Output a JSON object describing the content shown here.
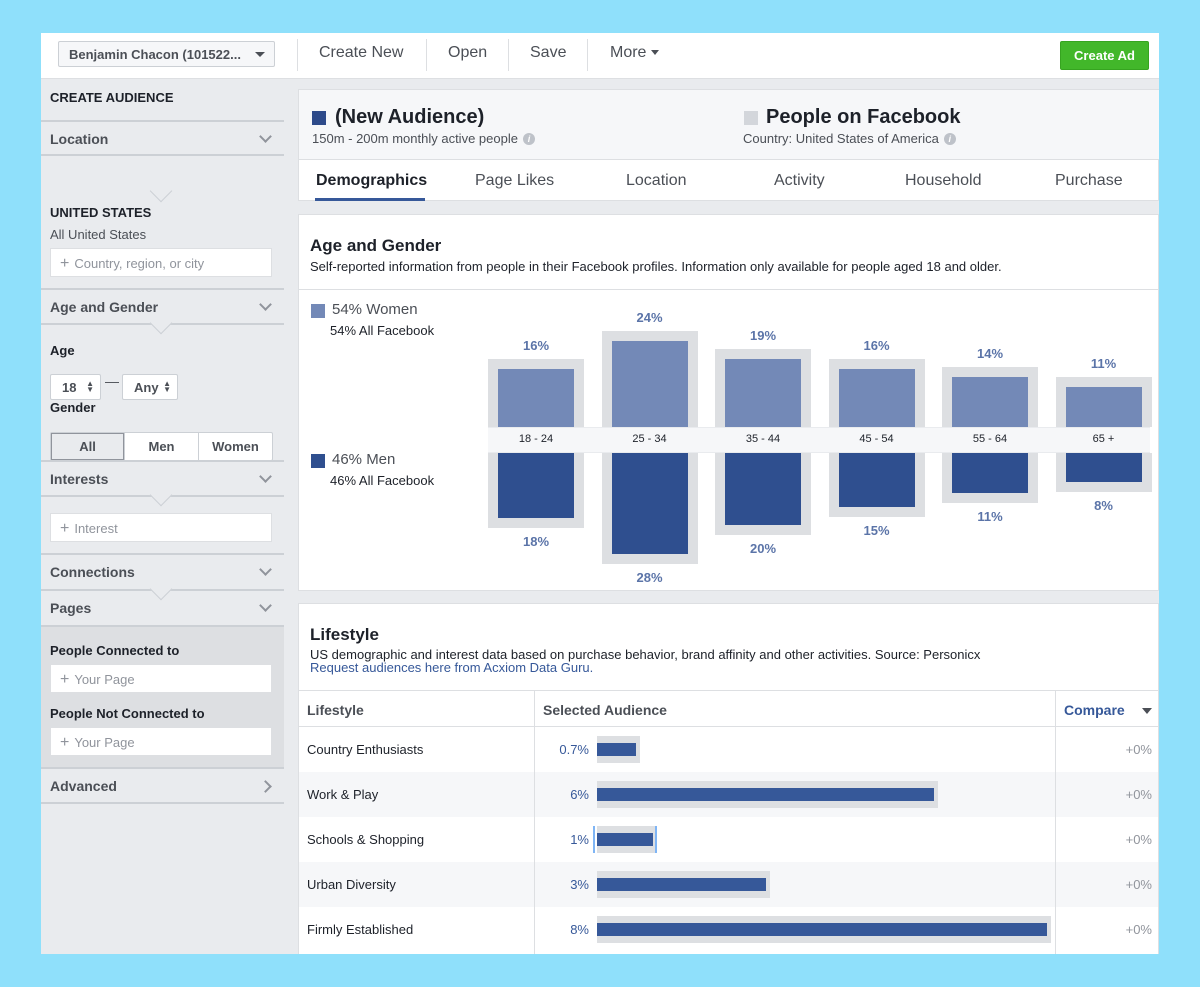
{
  "topbar": {
    "account": "Benjamin Chacon (101522...",
    "menu": [
      "Create New",
      "Open",
      "Save",
      "More"
    ],
    "create_ad": "Create Ad"
  },
  "sidebar": {
    "title": "CREATE AUDIENCE",
    "location": {
      "header": "Location",
      "country": "UNITED STATES",
      "country_sub": "All United States",
      "placeholder": "Country, region, or city"
    },
    "age_gender": {
      "header": "Age and Gender",
      "age_label": "Age",
      "age_min": "18",
      "age_max": "Any",
      "gender_label": "Gender",
      "gender_options": [
        "All",
        "Men",
        "Women"
      ]
    },
    "interests": {
      "header": "Interests",
      "placeholder": "Interest"
    },
    "connections": {
      "header": "Connections"
    },
    "pages": {
      "header": "Pages",
      "connected_label": "People Connected to",
      "connected_placeholder": "Your Page",
      "not_connected_label": "People Not Connected to",
      "not_connected_placeholder": "Your Page"
    },
    "advanced": {
      "header": "Advanced"
    }
  },
  "audience": {
    "title": "(New Audience)",
    "subtitle": "150m - 200m monthly active people",
    "compare_title": "People on Facebook",
    "compare_subtitle": "Country: United States of America",
    "color_main": "#2d4a8a",
    "color_compare": "#d3d6db"
  },
  "tabs": [
    "Demographics",
    "Page Likes",
    "Location",
    "Activity",
    "Household",
    "Purchase"
  ],
  "age_gender": {
    "title": "Age and Gender",
    "description": "Self-reported information from people in their Facebook profiles. Information only available for people aged 18 and older.",
    "women_label": "54% Women",
    "women_sub": "54% All Facebook",
    "men_label": "46% Men",
    "men_sub": "46% All Facebook",
    "color_women": "#7389b7",
    "color_men": "#2f4f8f"
  },
  "chart_data": {
    "type": "bar",
    "categories": [
      "18 - 24",
      "25 - 34",
      "35 - 44",
      "45 - 54",
      "55 - 64",
      "65 +"
    ],
    "series": [
      {
        "name": "Women",
        "values": [
          16,
          24,
          19,
          16,
          14,
          11
        ],
        "labels": [
          "16%",
          "24%",
          "19%",
          "16%",
          "14%",
          "11%"
        ]
      },
      {
        "name": "Men",
        "values": [
          18,
          28,
          20,
          15,
          11,
          8
        ],
        "labels": [
          "18%",
          "28%",
          "20%",
          "15%",
          "11%",
          "8%"
        ]
      }
    ],
    "comparison": {
      "women": [
        16,
        24,
        19,
        16,
        14,
        11
      ],
      "men": [
        18,
        28,
        20,
        15,
        11,
        8
      ]
    }
  },
  "lifestyle": {
    "title": "Lifestyle",
    "description": "US demographic and interest data based on purchase behavior, brand affinity and other activities. Source: Personicx",
    "link": "Request audiences here from Acxiom Data Guru.",
    "col_lifestyle": "Lifestyle",
    "col_selected": "Selected Audience",
    "col_compare": "Compare",
    "rows": [
      {
        "name": "Country Enthusiasts",
        "pct": "0.7%",
        "value": 0.7,
        "compare": "+0%"
      },
      {
        "name": "Work & Play",
        "pct": "6%",
        "value": 6,
        "compare": "+0%"
      },
      {
        "name": "Schools & Shopping",
        "pct": "1%",
        "value": 1,
        "compare": "+0%"
      },
      {
        "name": "Urban Diversity",
        "pct": "3%",
        "value": 3,
        "compare": "+0%"
      },
      {
        "name": "Firmly Established",
        "pct": "8%",
        "value": 8,
        "compare": "+0%"
      }
    ]
  }
}
